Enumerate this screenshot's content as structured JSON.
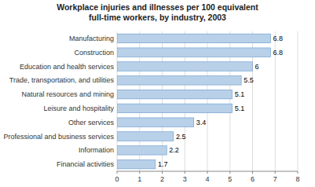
{
  "chart_data": {
    "type": "bar",
    "orientation": "horizontal",
    "title": "Workplace injuries and illnesses per 100 equivalent\nfull-time workers, by industry, 2003",
    "categories": [
      "Financial activities",
      "Information",
      "Professional and business services",
      "Other services",
      "Leisure and hospitality",
      "Natural resources and mining",
      "Trade, transportation, and utilities",
      "Education and health services",
      "Construction",
      "Manufacturing"
    ],
    "values": [
      1.7,
      2.2,
      2.5,
      3.4,
      5.1,
      5.1,
      5.5,
      6.0,
      6.8,
      6.8
    ],
    "color": "#b8d0e8",
    "xlim": [
      0,
      8
    ],
    "xticks": [
      0,
      1,
      2,
      3,
      4,
      5,
      6,
      7,
      8
    ],
    "grid": true,
    "data_labels": true
  }
}
